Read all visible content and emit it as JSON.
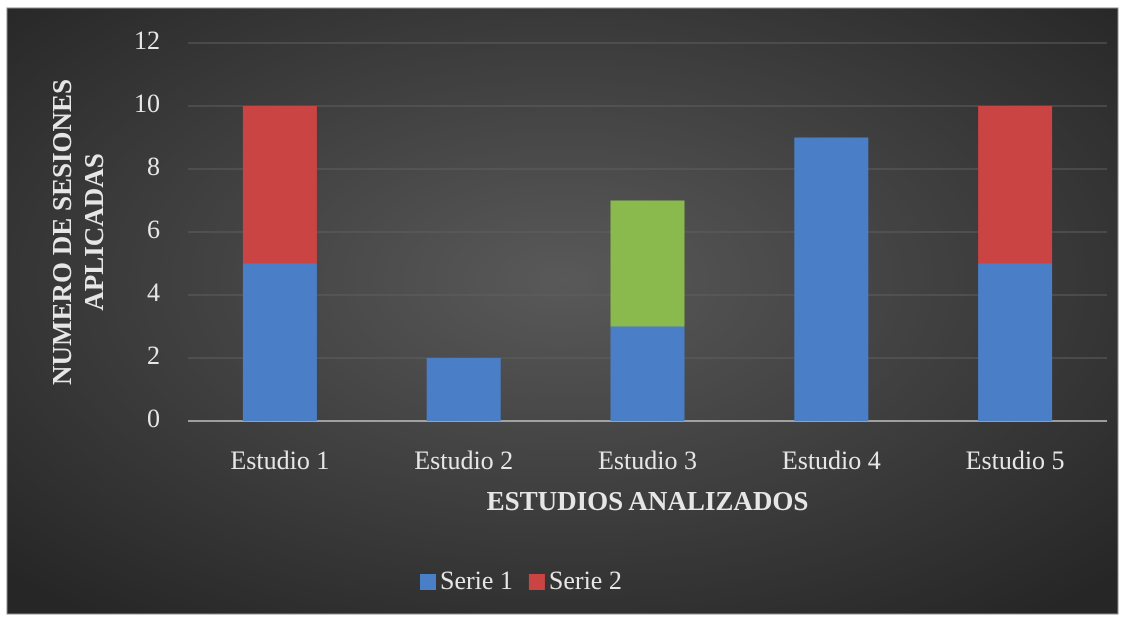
{
  "chart_data": {
    "type": "stacked_bar",
    "categories": [
      "Estudio 1",
      "Estudio 2",
      "Estudio 3",
      "Estudio 4",
      "Estudio 5"
    ],
    "series": [
      {
        "name": "Serie 1",
        "color": "#4a7fc8",
        "values": [
          5,
          2,
          3,
          9,
          5
        ]
      },
      {
        "name": "Serie 2",
        "color": "#c94442",
        "values": [
          5,
          null,
          null,
          null,
          5
        ]
      },
      {
        "color": "#8ab94e",
        "values": [
          null,
          null,
          4,
          null,
          null
        ]
      }
    ],
    "ylim": [
      0,
      12
    ],
    "yticks": [
      0,
      2,
      4,
      6,
      8,
      10,
      12
    ],
    "grid": true,
    "xlabel": "ESTUDIOS ANALIZADOS",
    "ylabel": [
      "NUMERO DE SESIONES",
      "APLICADAS"
    ],
    "legend": "bottom"
  }
}
